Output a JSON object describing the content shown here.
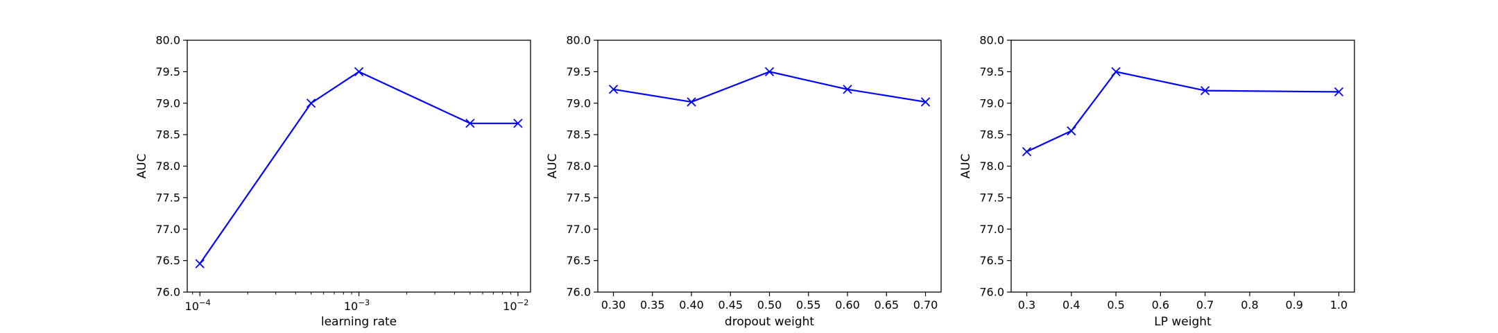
{
  "chart_data": [
    {
      "type": "line",
      "xlabel": "learning rate",
      "ylabel": "AUC",
      "xscale": "log",
      "xlim": [
        8.33e-05,
        0.012
      ],
      "ylim": [
        76.0,
        80.0
      ],
      "xticks": [
        {
          "value": 0.0001,
          "base": "10",
          "exp": "−4"
        },
        {
          "value": 0.001,
          "base": "10",
          "exp": "−3"
        },
        {
          "value": 0.01,
          "base": "10",
          "exp": "−2"
        }
      ],
      "yticks": [
        "76.0",
        "76.5",
        "77.0",
        "77.5",
        "78.0",
        "78.5",
        "79.0",
        "79.5",
        "80.0"
      ],
      "series": [
        {
          "color": "#0000ff",
          "marker": "x",
          "x": [
            0.0001,
            0.0005,
            0.001,
            0.005,
            0.01
          ],
          "y": [
            76.45,
            79.0,
            79.5,
            78.68,
            78.68
          ]
        }
      ]
    },
    {
      "type": "line",
      "xlabel": "dropout weight",
      "ylabel": "AUC",
      "xscale": "linear",
      "xlim": [
        0.28,
        0.72
      ],
      "ylim": [
        76.0,
        80.0
      ],
      "xticks": [
        "0.30",
        "0.35",
        "0.40",
        "0.45",
        "0.50",
        "0.55",
        "0.60",
        "0.65",
        "0.70"
      ],
      "yticks": [
        "76.0",
        "76.5",
        "77.0",
        "77.5",
        "78.0",
        "78.5",
        "79.0",
        "79.5",
        "80.0"
      ],
      "series": [
        {
          "color": "#0000ff",
          "marker": "x",
          "x": [
            0.3,
            0.4,
            0.5,
            0.6,
            0.7
          ],
          "y": [
            79.22,
            79.02,
            79.5,
            79.22,
            79.02
          ]
        }
      ]
    },
    {
      "type": "line",
      "xlabel": "LP weight",
      "ylabel": "AUC",
      "xscale": "linear",
      "xlim": [
        0.265,
        1.035
      ],
      "ylim": [
        76.0,
        80.0
      ],
      "xticks": [
        "0.3",
        "0.4",
        "0.5",
        "0.6",
        "0.7",
        "0.8",
        "0.9",
        "1.0"
      ],
      "yticks": [
        "76.0",
        "76.5",
        "77.0",
        "77.5",
        "78.0",
        "78.5",
        "79.0",
        "79.5",
        "80.0"
      ],
      "series": [
        {
          "color": "#0000ff",
          "marker": "x",
          "x": [
            0.3,
            0.4,
            0.5,
            0.7,
            1.0
          ],
          "y": [
            78.23,
            78.56,
            79.5,
            79.2,
            79.18
          ]
        }
      ]
    }
  ]
}
